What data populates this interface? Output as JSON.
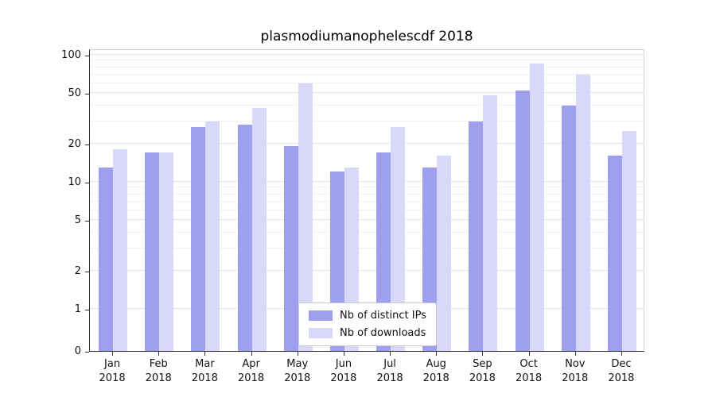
{
  "colors": {
    "series_ips": "#9f9fef",
    "series_downloads": "#d8d8f8",
    "grid_major": "#e3e3e3",
    "grid_minor": "#f2f2f2"
  },
  "chart_data": {
    "type": "bar",
    "title": "plasmodiumanophelescdf 2018",
    "categories": [
      "Jan 2018",
      "Feb 2018",
      "Mar 2018",
      "Apr 2018",
      "May 2018",
      "Jun 2018",
      "Jul 2018",
      "Aug 2018",
      "Sep 2018",
      "Oct 2018",
      "Nov 2018",
      "Dec 2018"
    ],
    "series": [
      {
        "name": "Nb of distinct IPs",
        "color": "#9f9fef",
        "values": [
          13,
          17,
          27,
          28,
          19,
          12,
          17,
          13,
          30,
          52,
          40,
          16
        ]
      },
      {
        "name": "Nb of downloads",
        "color": "#d8d8f8",
        "values": [
          18,
          17,
          30,
          38,
          60,
          13,
          27,
          16,
          48,
          85,
          70,
          25
        ]
      }
    ],
    "yscale": "symlog",
    "ylabel": "",
    "xlabel": "",
    "y_ticks": [
      0,
      1,
      2,
      5,
      10,
      20,
      50,
      100
    ],
    "y_minor_ticks": [
      3,
      4,
      6,
      7,
      8,
      9,
      30,
      40,
      60,
      70,
      80,
      90
    ],
    "ylim": [
      0,
      110
    ],
    "grid": true,
    "legend_position": "lower center"
  }
}
